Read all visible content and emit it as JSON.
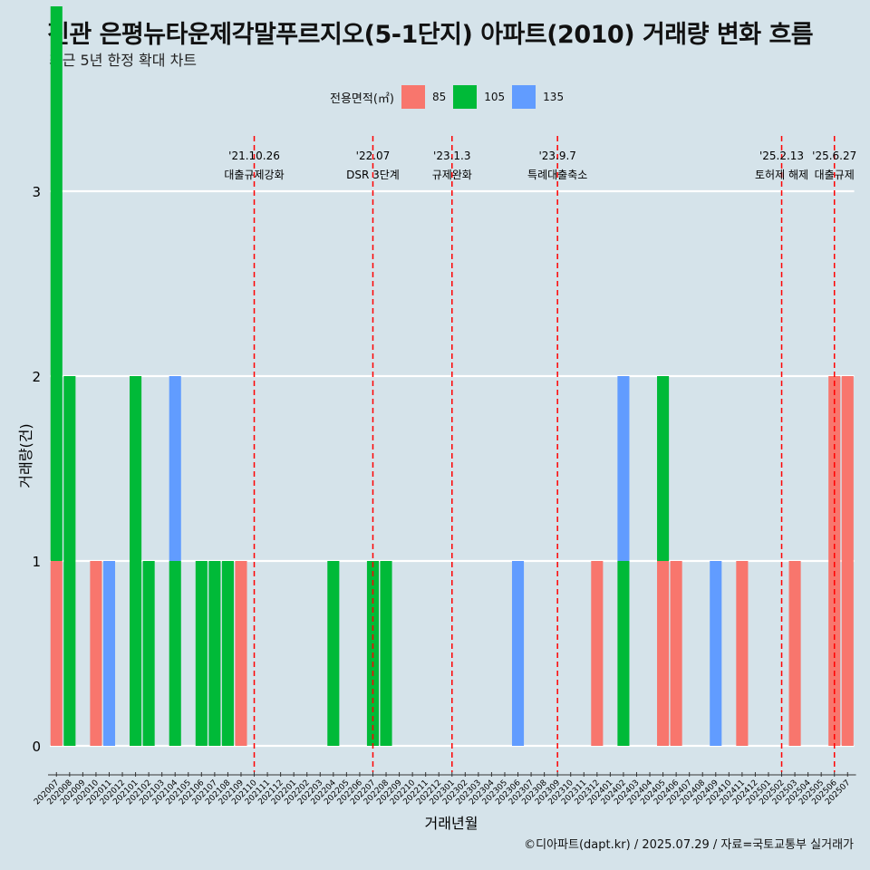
{
  "title": "진관 은평뉴타운제각말푸르지오(5-1단지) 아파트(2010) 거래량 변화 흐름",
  "subtitle": "최근 5년 한정 확대 차트",
  "footer": "©디아파트(dapt.kr) / 2025.07.29 / 자료=국토교통부 실거래가",
  "legend": {
    "title": "전용면적(㎡)",
    "items": [
      {
        "label": "85",
        "color": "#f8766d"
      },
      {
        "label": "105",
        "color": "#00ba38"
      },
      {
        "label": "135",
        "color": "#619cff"
      }
    ]
  },
  "chart_data": {
    "type": "bar",
    "xlabel": "거래년월",
    "ylabel": "거래량(건)",
    "ylim": [
      0,
      3
    ],
    "yticks": [
      0,
      1,
      2,
      3
    ],
    "grid": true,
    "legend_position": "top",
    "categories": [
      "202007",
      "202008",
      "202009",
      "202010",
      "202011",
      "202012",
      "202101",
      "202102",
      "202103",
      "202104",
      "202105",
      "202106",
      "202107",
      "202108",
      "202109",
      "202110",
      "202111",
      "202112",
      "202201",
      "202202",
      "202203",
      "202204",
      "202205",
      "202206",
      "202207",
      "202208",
      "202209",
      "202210",
      "202211",
      "202212",
      "202301",
      "202302",
      "202303",
      "202304",
      "202305",
      "202306",
      "202307",
      "202308",
      "202309",
      "202310",
      "202311",
      "202312",
      "202401",
      "202402",
      "202403",
      "202404",
      "202405",
      "202406",
      "202407",
      "202408",
      "202409",
      "202410",
      "202411",
      "202412",
      "202501",
      "202502",
      "202503",
      "202504",
      "202505",
      "202506",
      "202507"
    ],
    "series": [
      {
        "name": "85",
        "color": "#f8766d",
        "values": [
          1,
          0,
          0,
          1,
          0,
          0,
          0,
          0,
          0,
          0,
          0,
          0,
          0,
          0,
          1,
          0,
          0,
          0,
          0,
          0,
          0,
          0,
          0,
          0,
          0,
          0,
          0,
          0,
          0,
          0,
          0,
          0,
          0,
          0,
          0,
          0,
          0,
          0,
          0,
          0,
          0,
          1,
          0,
          0,
          0,
          0,
          1,
          1,
          0,
          0,
          0,
          0,
          1,
          0,
          0,
          0,
          1,
          0,
          0,
          2,
          2
        ]
      },
      {
        "name": "105",
        "color": "#00ba38",
        "values": [
          3,
          2,
          0,
          0,
          0,
          0,
          2,
          1,
          0,
          1,
          0,
          1,
          1,
          1,
          0,
          0,
          0,
          0,
          0,
          0,
          0,
          1,
          0,
          0,
          1,
          1,
          0,
          0,
          0,
          0,
          0,
          0,
          0,
          0,
          0,
          0,
          0,
          0,
          0,
          0,
          0,
          0,
          0,
          1,
          0,
          0,
          1,
          0,
          0,
          0,
          0,
          0,
          0,
          0,
          0,
          0,
          0,
          0,
          0,
          0,
          0
        ]
      },
      {
        "name": "135",
        "color": "#619cff",
        "values": [
          0,
          0,
          0,
          0,
          1,
          0,
          0,
          0,
          0,
          1,
          0,
          0,
          0,
          0,
          0,
          0,
          0,
          0,
          0,
          0,
          0,
          0,
          0,
          0,
          0,
          0,
          0,
          0,
          0,
          0,
          0,
          0,
          0,
          0,
          0,
          1,
          0,
          0,
          0,
          0,
          0,
          0,
          0,
          1,
          0,
          0,
          0,
          0,
          0,
          0,
          1,
          0,
          0,
          0,
          0,
          0,
          0,
          0,
          0,
          0,
          0
        ]
      }
    ],
    "events": [
      {
        "date": "'21.10.26",
        "label": "대출규제강화",
        "category": "202110"
      },
      {
        "date": "'22.07",
        "label": "DSR 3단계",
        "category": "202207"
      },
      {
        "date": "'23.1.3",
        "label": "규제완화",
        "category": "202301"
      },
      {
        "date": "'23.9.7",
        "label": "특례대출축소",
        "category": "202309"
      },
      {
        "date": "'25.2.13",
        "label": "토허제 해제",
        "category": "202502"
      },
      {
        "date": "'25.6.27",
        "label": "대출규제",
        "category": "202506"
      }
    ]
  }
}
